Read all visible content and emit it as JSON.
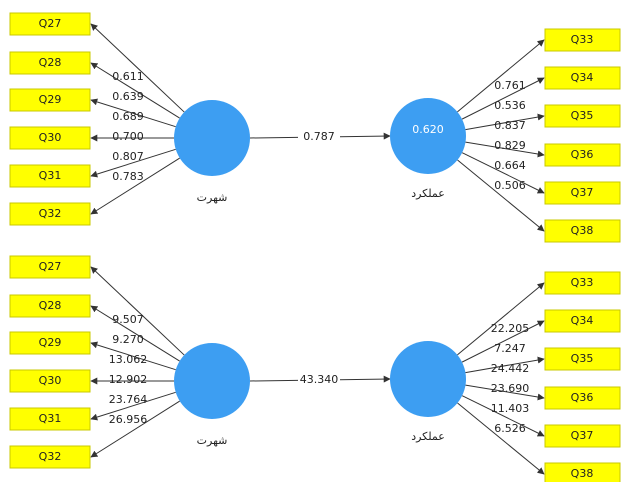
{
  "panels": [
    {
      "left_node": {
        "label": "شهرت"
      },
      "right_node": {
        "label": "عملکرد",
        "value": "0.620"
      },
      "path": "0.787",
      "left_indicators": [
        {
          "label": "Q27",
          "weight": "0.611"
        },
        {
          "label": "Q28",
          "weight": "0.639"
        },
        {
          "label": "Q29",
          "weight": "0.689"
        },
        {
          "label": "Q30",
          "weight": "0.700"
        },
        {
          "label": "Q31",
          "weight": "0.807"
        },
        {
          "label": "Q32",
          "weight": "0.783"
        }
      ],
      "right_indicators": [
        {
          "label": "Q33",
          "weight": "0.761"
        },
        {
          "label": "Q34",
          "weight": "0.536"
        },
        {
          "label": "Q35",
          "weight": "0.837"
        },
        {
          "label": "Q36",
          "weight": "0.829"
        },
        {
          "label": "Q37",
          "weight": "0.664"
        },
        {
          "label": "Q38",
          "weight": "0.506"
        }
      ]
    },
    {
      "left_node": {
        "label": "شهرت"
      },
      "right_node": {
        "label": "عملکرد"
      },
      "path": "43.340",
      "left_indicators": [
        {
          "label": "Q27",
          "weight": "9.507"
        },
        {
          "label": "Q28",
          "weight": "9.270"
        },
        {
          "label": "Q29",
          "weight": "13.062"
        },
        {
          "label": "Q30",
          "weight": "12.902"
        },
        {
          "label": "Q31",
          "weight": "23.764"
        },
        {
          "label": "Q32",
          "weight": "26.956"
        }
      ],
      "right_indicators": [
        {
          "label": "Q33",
          "weight": "22.205"
        },
        {
          "label": "Q34",
          "weight": "7.247"
        },
        {
          "label": "Q35",
          "weight": "24.442"
        },
        {
          "label": "Q36",
          "weight": "23.690"
        },
        {
          "label": "Q37",
          "weight": "11.403"
        },
        {
          "label": "Q38",
          "weight": "6.526"
        }
      ]
    }
  ]
}
